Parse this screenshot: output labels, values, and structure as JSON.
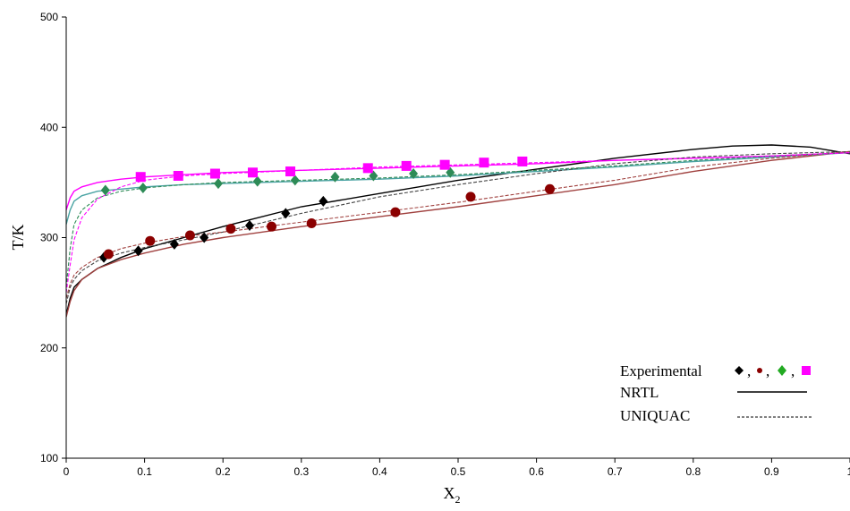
{
  "chart_data": {
    "type": "scatter",
    "title": "",
    "xlabel": "X",
    "xlabel_sub": "2",
    "ylabel": "T/K",
    "xlim": [
      0,
      1
    ],
    "ylim": [
      100,
      500
    ],
    "xticks": [
      0,
      0.1,
      0.2,
      0.3,
      0.4,
      0.5,
      0.6,
      0.7,
      0.8,
      0.9,
      1
    ],
    "yticks": [
      100,
      200,
      300,
      400,
      500
    ],
    "grid": false,
    "legend_position": "bottom-right",
    "legend": {
      "experimental_label": "Experimental",
      "separator": ",",
      "nrtl_label": "NRTL",
      "uniquac_label": "UNIQUAC"
    },
    "series": [
      {
        "kind": "experimental",
        "marker": "diamond",
        "color": "#000000",
        "x": [
          0.048,
          0.092,
          0.138,
          0.176,
          0.234,
          0.28,
          0.328
        ],
        "y": [
          282,
          288,
          294,
          300,
          311,
          322,
          333
        ]
      },
      {
        "kind": "experimental",
        "marker": "circle",
        "color": "#8b0000",
        "x": [
          0.054,
          0.107,
          0.158,
          0.21,
          0.262,
          0.313,
          0.42,
          0.516,
          0.617
        ],
        "y": [
          285,
          297,
          302,
          308,
          310,
          313,
          323,
          337,
          344
        ]
      },
      {
        "kind": "experimental",
        "marker": "diamond",
        "color": "#2e8b57",
        "x": [
          0.05,
          0.098,
          0.194,
          0.244,
          0.292,
          0.343,
          0.392,
          0.443,
          0.49
        ],
        "y": [
          343,
          345,
          349,
          351,
          352,
          355,
          356,
          358,
          359
        ]
      },
      {
        "kind": "experimental",
        "marker": "square",
        "color": "#ff00ff",
        "x": [
          0.095,
          0.143,
          0.19,
          0.238,
          0.286,
          0.385,
          0.434,
          0.483,
          0.533,
          0.582
        ],
        "y": [
          355,
          356,
          358,
          359,
          360,
          363,
          365,
          366,
          368,
          369
        ]
      },
      {
        "kind": "NRTL",
        "style": "solid",
        "color": "#000000",
        "x": [
          0,
          0.005,
          0.01,
          0.02,
          0.04,
          0.07,
          0.1,
          0.15,
          0.2,
          0.3,
          0.4,
          0.5,
          0.6,
          0.7,
          0.8,
          0.85,
          0.9,
          0.95,
          1.0
        ],
        "y": [
          230,
          245,
          255,
          262,
          272,
          282,
          290,
          300,
          310,
          328,
          340,
          352,
          362,
          372,
          380,
          383,
          384,
          382,
          376
        ]
      },
      {
        "kind": "NRTL",
        "style": "solid",
        "color": "#a0413f",
        "x": [
          0,
          0.005,
          0.01,
          0.02,
          0.04,
          0.07,
          0.1,
          0.15,
          0.2,
          0.3,
          0.4,
          0.5,
          0.6,
          0.7,
          0.8,
          0.9,
          1.0
        ],
        "y": [
          228,
          242,
          252,
          262,
          272,
          280,
          286,
          294,
          300,
          310,
          319,
          328,
          338,
          348,
          360,
          370,
          378
        ]
      },
      {
        "kind": "NRTL",
        "style": "solid",
        "color": "#4aa3a3",
        "x": [
          0,
          0.005,
          0.01,
          0.02,
          0.04,
          0.07,
          0.1,
          0.15,
          0.2,
          0.3,
          0.4,
          0.5,
          0.6,
          0.7,
          0.8,
          0.9,
          1.0
        ],
        "y": [
          312,
          325,
          333,
          338,
          342,
          344,
          346,
          348,
          349,
          351,
          353,
          356,
          360,
          364,
          369,
          373,
          377
        ]
      },
      {
        "kind": "NRTL",
        "style": "solid",
        "color": "#ff00ff",
        "x": [
          0,
          0.005,
          0.01,
          0.02,
          0.04,
          0.07,
          0.1,
          0.15,
          0.2,
          0.3,
          0.4,
          0.5,
          0.6,
          0.7,
          0.8,
          0.9,
          1.0
        ],
        "y": [
          325,
          336,
          342,
          346,
          350,
          353,
          355,
          357,
          359,
          361,
          363,
          365,
          367,
          370,
          372,
          374,
          377
        ]
      },
      {
        "kind": "UNIQUAC",
        "style": "dashed",
        "color": "#444444",
        "x": [
          0,
          0.005,
          0.01,
          0.02,
          0.04,
          0.07,
          0.1,
          0.15,
          0.2,
          0.3,
          0.4,
          0.5,
          0.6,
          0.7,
          0.8,
          0.9,
          1.0
        ],
        "y": [
          240,
          255,
          262,
          270,
          279,
          286,
          291,
          298,
          305,
          322,
          337,
          348,
          358,
          367,
          373,
          376,
          378
        ]
      },
      {
        "kind": "UNIQUAC",
        "style": "dashed",
        "color": "#a0413f",
        "x": [
          0,
          0.005,
          0.01,
          0.02,
          0.04,
          0.07,
          0.1,
          0.15,
          0.2,
          0.3,
          0.4,
          0.5,
          0.6,
          0.7,
          0.8,
          0.9,
          1.0
        ],
        "y": [
          245,
          258,
          266,
          273,
          282,
          290,
          295,
          301,
          305,
          314,
          323,
          332,
          342,
          352,
          364,
          372,
          378
        ]
      },
      {
        "kind": "UNIQUAC",
        "style": "dashed",
        "color": "#2e8b57",
        "x": [
          0,
          0.005,
          0.01,
          0.02,
          0.04,
          0.07,
          0.1,
          0.15,
          0.2,
          0.3,
          0.4,
          0.5,
          0.6,
          0.7,
          0.8,
          0.9,
          1.0
        ],
        "y": [
          255,
          290,
          312,
          325,
          336,
          342,
          345,
          348,
          350,
          352,
          354,
          357,
          361,
          365,
          370,
          374,
          377
        ]
      },
      {
        "kind": "UNIQUAC",
        "style": "dashed",
        "color": "#ff00ff",
        "x": [
          0,
          0.005,
          0.01,
          0.02,
          0.04,
          0.07,
          0.1,
          0.15,
          0.2,
          0.3,
          0.4,
          0.5,
          0.6,
          0.7,
          0.8,
          0.9,
          1.0
        ],
        "y": [
          250,
          275,
          298,
          318,
          335,
          346,
          352,
          356,
          358,
          361,
          364,
          366,
          368,
          370,
          372,
          374,
          377
        ]
      }
    ]
  }
}
